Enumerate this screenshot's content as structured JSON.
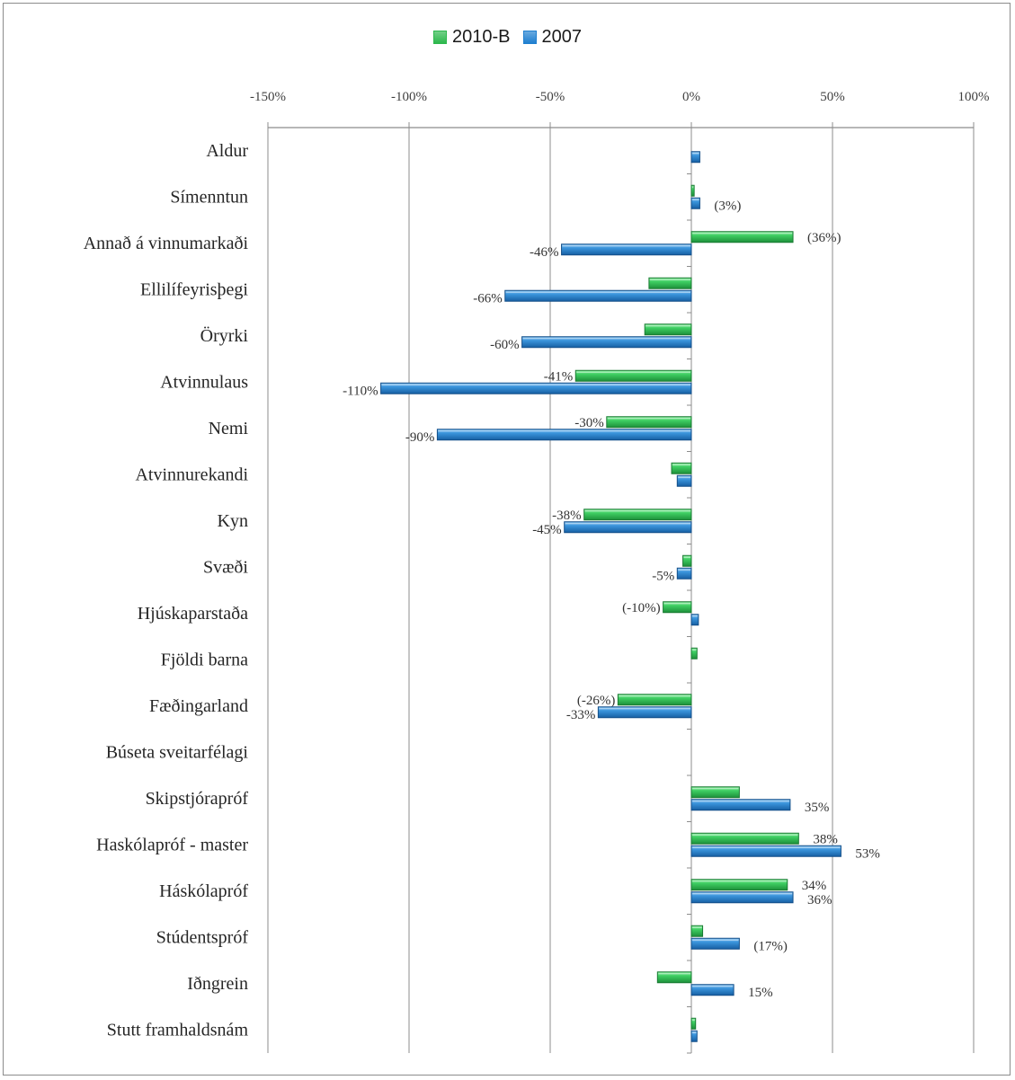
{
  "chart_data": {
    "type": "bar",
    "orientation": "horizontal",
    "title": "",
    "xlabel": "",
    "ylabel": "",
    "xlim": [
      -1.5,
      1.0
    ],
    "x_ticks": [
      -1.5,
      -1.0,
      -0.5,
      0,
      0.5,
      1.0
    ],
    "x_tick_labels": [
      "-150%",
      "-100%",
      "-50%",
      "0%",
      "50%",
      "100%"
    ],
    "grid": true,
    "legend_position": "top",
    "categories": [
      "Aldur",
      "Símenntun",
      "Annað á vinnumarkaði",
      "Ellilífeyrisþegi",
      "Öryrki",
      "Atvinnulaus",
      "Nemi",
      "Atvinnurekandi",
      "Kyn",
      "Svæði",
      "Hjúskaparstaða",
      "Fjöldi barna",
      "Fæðingarland",
      "Búseta sveitarfélagi",
      "Skipstjórapróf",
      "Haskólapróf - master",
      "Háskólapróf",
      "Stúdentspróf",
      "Iðngrein",
      "Stutt framhaldsnám"
    ],
    "series": [
      {
        "name": "2010-B",
        "color": "#2db84d",
        "values": [
          null,
          0.01,
          0.36,
          -0.15,
          -0.165,
          -0.41,
          -0.3,
          -0.07,
          -0.38,
          -0.03,
          -0.1,
          0.02,
          -0.26,
          null,
          0.17,
          0.38,
          0.34,
          0.04,
          -0.12,
          0.015
        ],
        "labels": [
          "",
          "",
          "(36%)",
          "",
          "",
          "-41%",
          "-30%",
          "",
          "-38%",
          "",
          "(-10%)",
          "",
          "(-26%)",
          "",
          "",
          "38%",
          "34%",
          "",
          "",
          ""
        ]
      },
      {
        "name": "2007",
        "color": "#1f7fd0",
        "values": [
          0.03,
          0.03,
          -0.46,
          -0.66,
          -0.6,
          -1.1,
          -0.9,
          -0.05,
          -0.45,
          -0.05,
          0.025,
          null,
          -0.33,
          null,
          0.35,
          0.53,
          0.36,
          0.17,
          0.15,
          0.02
        ],
        "labels": [
          "",
          "(3%)",
          "-46%",
          "-66%",
          "-60%",
          "-110%",
          "-90%",
          "",
          "-45%",
          "-5%",
          "",
          "",
          "-33%",
          "",
          "35%",
          "53%",
          "36%",
          "(17%)",
          "15%",
          ""
        ]
      }
    ]
  }
}
